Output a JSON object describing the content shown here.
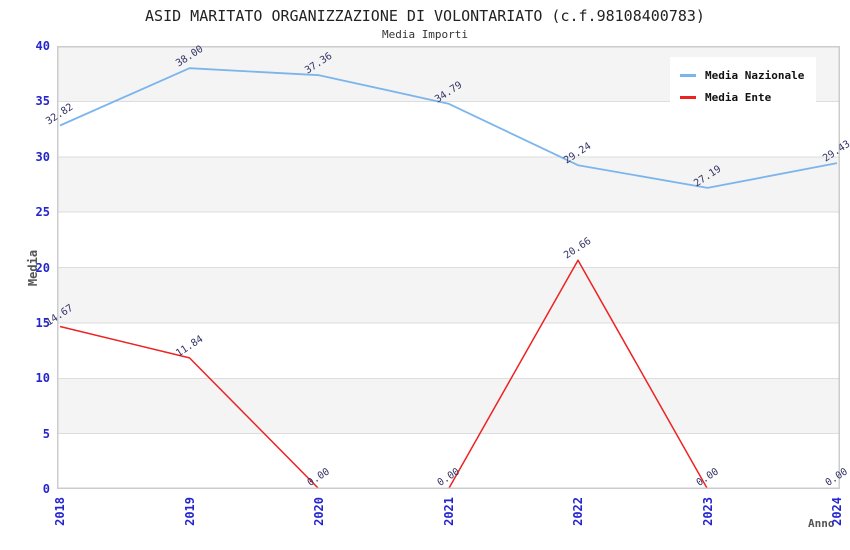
{
  "chart_data": {
    "type": "line",
    "title": "ASID MARITATO ORGANIZZAZIONE DI VOLONTARIATO (c.f.98108400783)",
    "subtitle": "Media Importi",
    "xlabel": "Anno",
    "ylabel": "Media",
    "categories": [
      "2018",
      "2019",
      "2020",
      "2021",
      "2022",
      "2023",
      "2024"
    ],
    "series": [
      {
        "name": "Media Nazionale",
        "color": "#7CB5EC",
        "values": [
          32.82,
          38.0,
          37.36,
          34.79,
          29.24,
          27.19,
          29.43
        ]
      },
      {
        "name": "Media Ente",
        "color": "#EE2222",
        "values": [
          14.67,
          11.84,
          0.0,
          0.0,
          20.66,
          0.0,
          0.0
        ]
      }
    ],
    "ylim": [
      0,
      40
    ],
    "ytick_step": 5,
    "grid": "horizontal",
    "banding": true,
    "legend_position": "top-right",
    "data_labels": true,
    "data_label_decimals": 2
  },
  "colors": {
    "tick_label": "#2525CD",
    "data_label": "#333366",
    "axis_title": "#555555",
    "title": "#222222",
    "subtitle": "#333333",
    "band": "#F4F4F4",
    "grid": "#DDDDDD",
    "plot_border": "#CCCCCC",
    "legend_bg": "#FFFFFF",
    "legend_text": "#111111"
  }
}
